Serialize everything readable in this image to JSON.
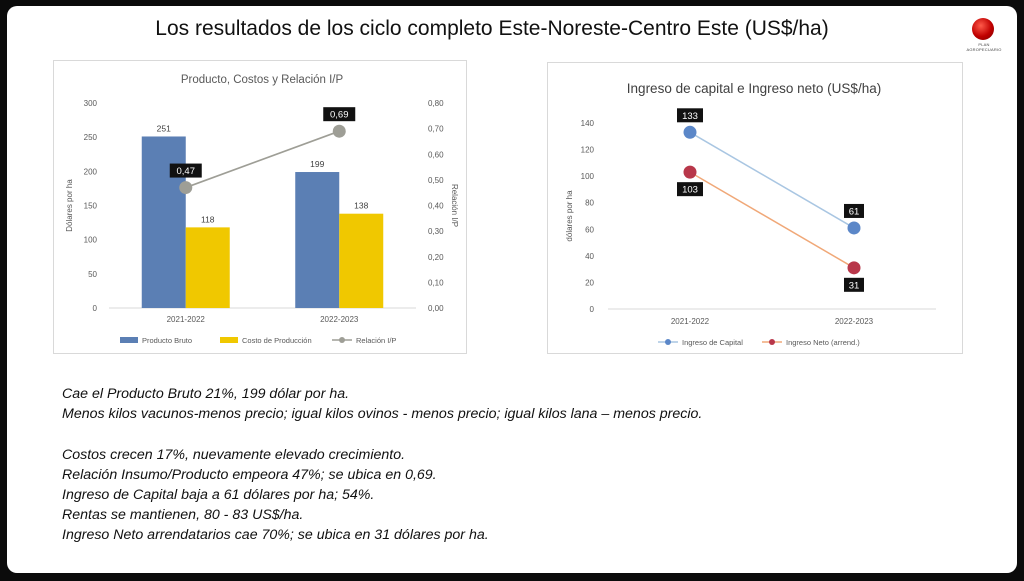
{
  "slide": {
    "title": "Los resultados de los ciclo completo Este-Noreste-Centro  Este (US$/ha)",
    "logo_text": "PLAN AGROPECUARIO"
  },
  "colors": {
    "producto_bruto": "#5b7fb4",
    "costo_produccion": "#f0c800",
    "relacion": "#9e9e96",
    "ingreso_capital": "#5b87c8",
    "ingreso_neto": "#b8374a",
    "label_box": "#111111"
  },
  "chart_data": [
    {
      "type": "bar",
      "title": "Producto, Costos y Relación I/P",
      "categories": [
        "2021-2022",
        "2022-2023"
      ],
      "series": [
        {
          "name": "Producto Bruto",
          "values": [
            251,
            199
          ],
          "axis": "left"
        },
        {
          "name": "Costo de Producción",
          "values": [
            118,
            138
          ],
          "axis": "left"
        },
        {
          "name": "Relación I/P",
          "kind": "line",
          "values": [
            0.47,
            0.69
          ],
          "labels": [
            "0,47",
            "0,69"
          ],
          "axis": "right"
        }
      ],
      "ylabel": "Dólares por ha",
      "y2label": "Relación I/P",
      "ylim": [
        0,
        300
      ],
      "y2lim": [
        0,
        0.8
      ],
      "yticks": [
        "0",
        "50",
        "100",
        "150",
        "200",
        "250",
        "300"
      ],
      "y2ticks": [
        "0,00",
        "0,10",
        "0,20",
        "0,30",
        "0,40",
        "0,50",
        "0,60",
        "0,70",
        "0,80"
      ],
      "grid": false,
      "legend": "bottom"
    },
    {
      "type": "line",
      "title": "Ingreso de capital e Ingreso neto (US$/ha)",
      "categories": [
        "2021-2022",
        "2022-2023"
      ],
      "series": [
        {
          "name": "Ingreso de Capital",
          "values": [
            133,
            61
          ]
        },
        {
          "name": "Ingreso Neto (arrend.)",
          "values": [
            103,
            31
          ]
        }
      ],
      "ylabel": "dólares por ha",
      "ylim": [
        0,
        140
      ],
      "yticks": [
        "0",
        "20",
        "40",
        "60",
        "80",
        "100",
        "120",
        "140"
      ],
      "grid": false,
      "legend": "bottom"
    }
  ],
  "notes": [
    "Cae el Producto Bruto 21%, 199 dólar por ha.",
    "Menos kilos vacunos-menos precio; igual kilos ovinos - menos precio; igual kilos lana – menos precio.",
    "",
    "Costos crecen 17%, nuevamente elevado crecimiento.",
    "Relación Insumo/Producto empeora 47%; se ubica en 0,69.",
    "Ingreso de Capital  baja a 61 dólares por ha;  54%.",
    "Rentas se mantienen, 80 - 83 US$/ha.",
    "Ingreso Neto arrendatarios cae 70%;  se ubica en 31 dólares por ha."
  ]
}
